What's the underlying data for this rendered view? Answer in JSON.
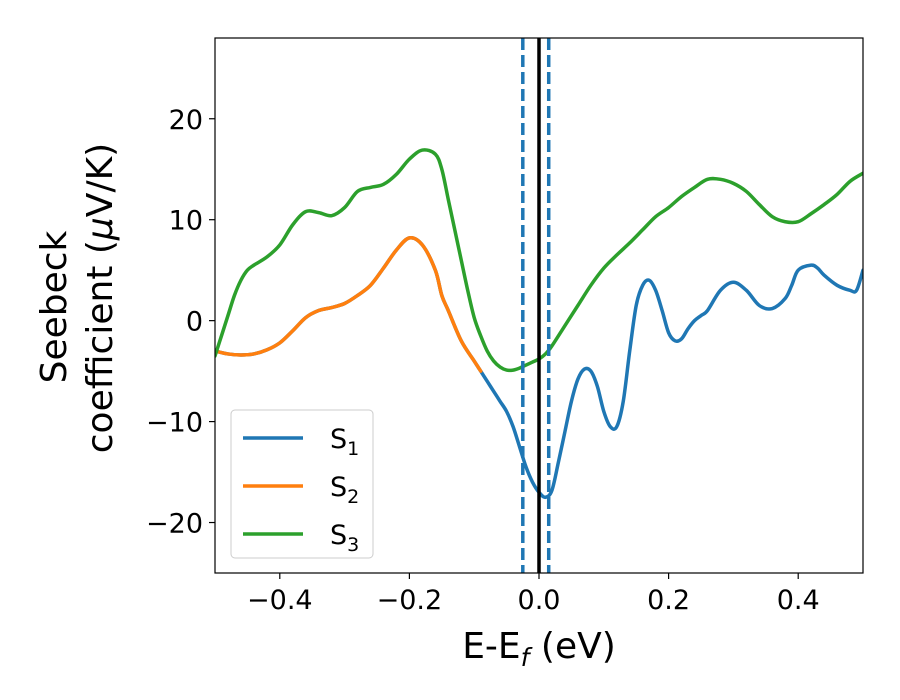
{
  "chart_data": {
    "type": "line",
    "xlabel": "E-E",
    "xlabel_sub": "f",
    "xlabel_unit": " (eV)",
    "ylabel_line1": "Seebeck",
    "ylabel_line2": "coefficient  (",
    "ylabel_mu": "μ",
    "ylabel_unit": "V/K)",
    "xlim": [
      -0.5,
      0.5
    ],
    "ylim": [
      -25,
      28
    ],
    "xticks": [
      -0.4,
      -0.2,
      0.0,
      0.2,
      0.4
    ],
    "xtick_labels": [
      "−0.4",
      "−0.2",
      "0.0",
      "0.2",
      "0.4"
    ],
    "yticks": [
      -20,
      -10,
      0,
      10,
      20
    ],
    "ytick_labels": [
      "−20",
      "−10",
      "0",
      "10",
      "20"
    ],
    "grid": false,
    "legend_position": "lower-left",
    "series": [
      {
        "name": "S",
        "name_sub": "1",
        "color": "#1f77b4",
        "x": [
          -0.5,
          -0.48,
          -0.46,
          -0.44,
          -0.42,
          -0.4,
          -0.38,
          -0.36,
          -0.34,
          -0.32,
          -0.3,
          -0.28,
          -0.26,
          -0.24,
          -0.22,
          -0.2,
          -0.18,
          -0.16,
          -0.15,
          -0.14,
          -0.12,
          -0.1,
          -0.09,
          -0.08,
          -0.07,
          -0.06,
          -0.05,
          -0.04,
          -0.03,
          -0.02,
          -0.01,
          0.0,
          0.01,
          0.02,
          0.03,
          0.04,
          0.05,
          0.06,
          0.07,
          0.08,
          0.09,
          0.1,
          0.11,
          0.12,
          0.13,
          0.14,
          0.15,
          0.16,
          0.17,
          0.18,
          0.19,
          0.2,
          0.21,
          0.22,
          0.23,
          0.24,
          0.25,
          0.26,
          0.28,
          0.3,
          0.32,
          0.34,
          0.36,
          0.38,
          0.39,
          0.4,
          0.42,
          0.43,
          0.44,
          0.46,
          0.48,
          0.49,
          0.5
        ],
        "y": [
          -3.0,
          -3.3,
          -3.4,
          -3.3,
          -2.9,
          -2.2,
          -1.0,
          0.3,
          1.0,
          1.3,
          1.7,
          2.5,
          3.5,
          5.2,
          7.0,
          8.2,
          7.5,
          5.0,
          2.5,
          1.0,
          -2.0,
          -4.0,
          -5.0,
          -6.0,
          -7.0,
          -8.0,
          -9.0,
          -10.5,
          -12.5,
          -14.5,
          -16.0,
          -17.0,
          -17.5,
          -16.8,
          -14.0,
          -11.0,
          -8.0,
          -5.8,
          -4.8,
          -5.0,
          -6.5,
          -9.0,
          -10.5,
          -10.5,
          -8.0,
          -3.0,
          1.5,
          3.5,
          4.0,
          3.0,
          1.0,
          -1.2,
          -2.0,
          -1.8,
          -0.8,
          0.0,
          0.5,
          1.0,
          3.0,
          3.8,
          3.0,
          1.5,
          1.2,
          2.2,
          3.5,
          5.0,
          5.5,
          5.2,
          4.5,
          3.5,
          3.0,
          3.0,
          5.0
        ]
      },
      {
        "name": "S",
        "name_sub": "2",
        "color": "#ff7f0e",
        "x": [
          -0.5,
          -0.48,
          -0.46,
          -0.44,
          -0.42,
          -0.4,
          -0.38,
          -0.36,
          -0.34,
          -0.32,
          -0.3,
          -0.28,
          -0.26,
          -0.24,
          -0.22,
          -0.2,
          -0.18,
          -0.16,
          -0.15,
          -0.14,
          -0.12,
          -0.1,
          -0.09
        ],
        "y": [
          -3.0,
          -3.3,
          -3.4,
          -3.3,
          -2.9,
          -2.2,
          -1.0,
          0.3,
          1.0,
          1.3,
          1.7,
          2.5,
          3.5,
          5.2,
          7.0,
          8.2,
          7.5,
          5.0,
          2.5,
          1.0,
          -2.0,
          -4.0,
          -5.0
        ]
      },
      {
        "name": "S",
        "name_sub": "3",
        "color": "#2ca02c",
        "x": [
          -0.5,
          -0.49,
          -0.48,
          -0.47,
          -0.46,
          -0.45,
          -0.44,
          -0.42,
          -0.4,
          -0.38,
          -0.36,
          -0.34,
          -0.32,
          -0.3,
          -0.28,
          -0.26,
          -0.24,
          -0.22,
          -0.2,
          -0.18,
          -0.16,
          -0.15,
          -0.14,
          -0.13,
          -0.12,
          -0.11,
          -0.1,
          -0.09,
          -0.08,
          -0.07,
          -0.06,
          -0.05,
          -0.04,
          -0.03,
          -0.02,
          -0.01,
          0.0,
          0.01,
          0.02,
          0.04,
          0.06,
          0.08,
          0.1,
          0.12,
          0.14,
          0.16,
          0.18,
          0.2,
          0.22,
          0.24,
          0.26,
          0.28,
          0.3,
          0.32,
          0.34,
          0.36,
          0.38,
          0.4,
          0.42,
          0.44,
          0.46,
          0.48,
          0.5
        ],
        "y": [
          -3.5,
          -1.5,
          0.5,
          2.5,
          4.0,
          5.0,
          5.5,
          6.3,
          7.5,
          9.5,
          10.8,
          10.7,
          10.4,
          11.2,
          12.8,
          13.2,
          13.5,
          14.5,
          16.0,
          16.9,
          16.5,
          15.0,
          12.0,
          9.0,
          6.0,
          3.0,
          0.3,
          -1.5,
          -3.0,
          -4.0,
          -4.6,
          -4.9,
          -4.9,
          -4.7,
          -4.4,
          -4.1,
          -3.8,
          -3.3,
          -2.5,
          -0.5,
          1.5,
          3.5,
          5.2,
          6.5,
          7.7,
          9.0,
          10.3,
          11.2,
          12.3,
          13.2,
          14.0,
          14.0,
          13.6,
          12.8,
          11.5,
          10.3,
          9.8,
          9.8,
          10.6,
          11.5,
          12.5,
          13.8,
          14.6
        ]
      }
    ],
    "vlines": [
      {
        "x": 0.0,
        "color": "#000000",
        "style": "solid"
      },
      {
        "x": -0.025,
        "color": "#1f77b4",
        "style": "dashed"
      },
      {
        "x": 0.015,
        "color": "#1f77b4",
        "style": "dashed"
      }
    ]
  }
}
